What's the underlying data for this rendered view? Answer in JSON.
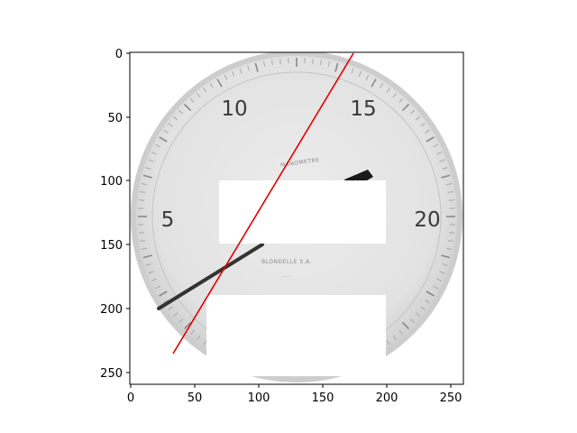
{
  "figure": {
    "x_ticks": [
      "0",
      "50",
      "100",
      "150",
      "200",
      "250"
    ],
    "y_ticks": [
      "0",
      "50",
      "100",
      "150",
      "200",
      "250"
    ]
  },
  "gauge": {
    "scale_labels": [
      "5",
      "10",
      "15",
      "20"
    ],
    "dial_text": [
      "MANOMETRE",
      "BLONDELLE S.A."
    ]
  },
  "overlay": {
    "line_color": "#e00000",
    "mask_color": "#ffffff"
  }
}
